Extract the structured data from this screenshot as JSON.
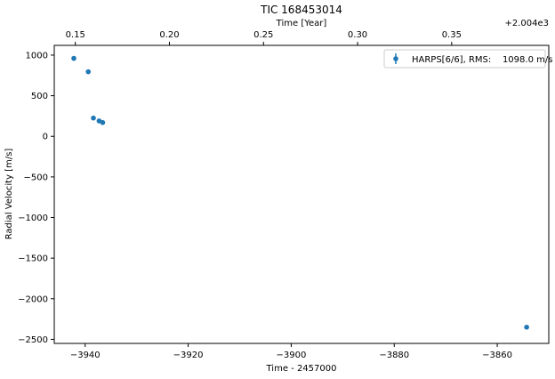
{
  "chart_data": {
    "type": "scatter",
    "title": "TIC 168453014",
    "xlabel": "Time - 2457000",
    "ylabel": "Radial Velocity [m/s]",
    "top_xlabel": "Time [Year]",
    "top_offset_label": "+2.004e3",
    "xlim": [
      -3946,
      -3850
    ],
    "ylim": [
      -2550,
      1120
    ],
    "xticks": [
      -3940,
      -3920,
      -3900,
      -3880,
      -3860
    ],
    "xtick_labels": [
      "−3940",
      "−3920",
      "−3900",
      "−3880",
      "−3860"
    ],
    "yticks": [
      1000,
      500,
      0,
      -500,
      -1000,
      -1500,
      -2000,
      -2500
    ],
    "ytick_labels": [
      "1000",
      "500",
      "0",
      "−500",
      "−1000",
      "−1500",
      "−2000",
      "−2500"
    ],
    "top_xticks": [
      0.15,
      0.2,
      0.25,
      0.3,
      0.35
    ],
    "top_xtick_labels": [
      "0.15",
      "0.20",
      "0.25",
      "0.30",
      "0.35"
    ],
    "top_xlim": [
      0.1388,
      0.4016
    ],
    "series": [
      {
        "name": "HARPS[6/6], RMS:    1098.0 m/s",
        "color": "#1f77b4",
        "x": [
          -3942.2,
          -3939.4,
          -3938.4,
          -3937.3,
          -3936.6,
          -3854.3
        ],
        "y": [
          960,
          795,
          225,
          190,
          170,
          -2350
        ]
      }
    ],
    "legend_position": "top-right",
    "grid": false
  }
}
